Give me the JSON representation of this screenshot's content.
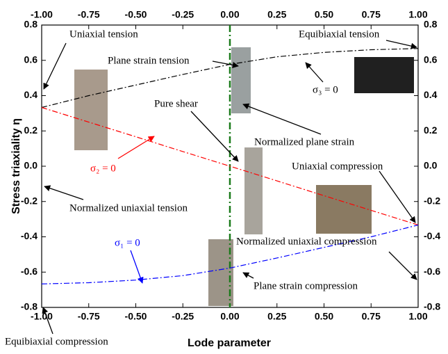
{
  "chart_data": {
    "type": "line",
    "xlabel": "Lode parameter",
    "ylabel": "Stress triaxiality η",
    "xlim": [
      -1,
      1
    ],
    "ylim": [
      -0.8,
      0.8
    ],
    "xticks": [
      {
        "value": -1,
        "label": "-1.00"
      },
      {
        "value": -0.75,
        "label": "-0.75"
      },
      {
        "value": -0.5,
        "label": "-0.50"
      },
      {
        "value": -0.25,
        "label": "-0.25"
      },
      {
        "value": 0,
        "label": "0.00"
      },
      {
        "value": 0.25,
        "label": "0.25"
      },
      {
        "value": 0.5,
        "label": "0.50"
      },
      {
        "value": 0.75,
        "label": "0.75"
      },
      {
        "value": 1,
        "label": "1.00"
      }
    ],
    "yticks": [
      -0.8,
      -0.6,
      -0.4,
      -0.2,
      {
        "value": 0,
        "label": "0.0"
      },
      0.2,
      0.4,
      0.6,
      0.8
    ],
    "reference_line_x": 0,
    "reference_color": "#1a7a1a",
    "x": [
      -1,
      -0.75,
      -0.5,
      -0.25,
      0,
      0.25,
      0.5,
      0.75,
      1
    ],
    "series": [
      {
        "name": "σ₃ = 0",
        "color": "#000000",
        "values": [
          0.333,
          0.4,
          0.46,
          0.52,
          0.577,
          0.62,
          0.645,
          0.66,
          0.667
        ]
      },
      {
        "name": "σ₂ = 0",
        "color": "#ff0000",
        "values": [
          0.333,
          0.25,
          0.167,
          0.083,
          0,
          -0.083,
          -0.167,
          -0.25,
          -0.333
        ]
      },
      {
        "name": "σ₁ = 0",
        "color": "#0000ff",
        "values": [
          -0.667,
          -0.66,
          -0.645,
          -0.62,
          -0.577,
          -0.52,
          -0.46,
          -0.4,
          -0.333
        ]
      }
    ],
    "annotations": [
      "Uniaxial tension",
      "Equibiaxial tension",
      "Plane strain tension",
      "Pure shear",
      "Normalized plane strain",
      "Uniaxial compression",
      "Normalized uniaxial tension",
      "Normalized uniaxial compression",
      "Plane strain compression",
      "Equibiaxial compression"
    ]
  }
}
